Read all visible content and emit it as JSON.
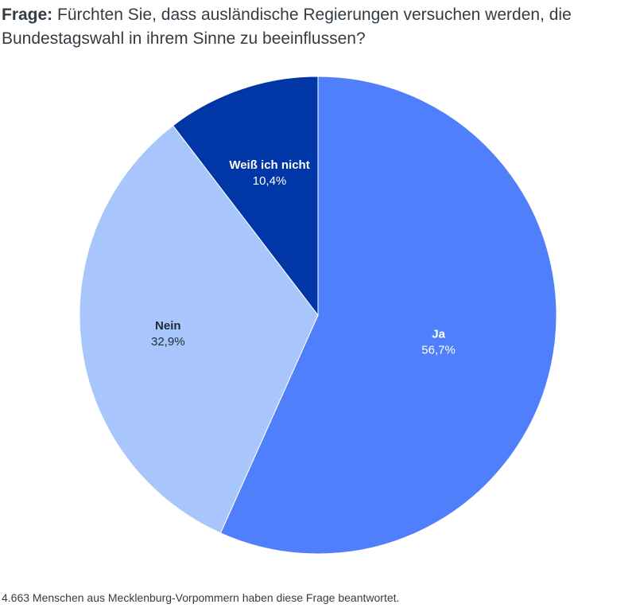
{
  "question": {
    "label": "Frage:",
    "text": "Fürchten Sie, dass ausländische Regierungen versuchen werden, die Bundestagswahl in ihrem Sinne zu beeinflussen?"
  },
  "footer": {
    "note": "4.663 Menschen aus Mecklenburg-Vorpommern haben diese Frage beantwortet."
  },
  "chart_data": {
    "type": "pie",
    "categories": [
      "Ja",
      "Nein",
      "Weiß ich nicht"
    ],
    "values": [
      56.7,
      32.9,
      10.4
    ],
    "value_labels": [
      "56,7%",
      "32,9%",
      "10,4%"
    ],
    "colors": [
      "#4f7ffa",
      "#a9c6fc",
      "#0036a6"
    ],
    "label_colors": [
      "#ffffff",
      "#1f2a33",
      "#ffffff"
    ]
  }
}
